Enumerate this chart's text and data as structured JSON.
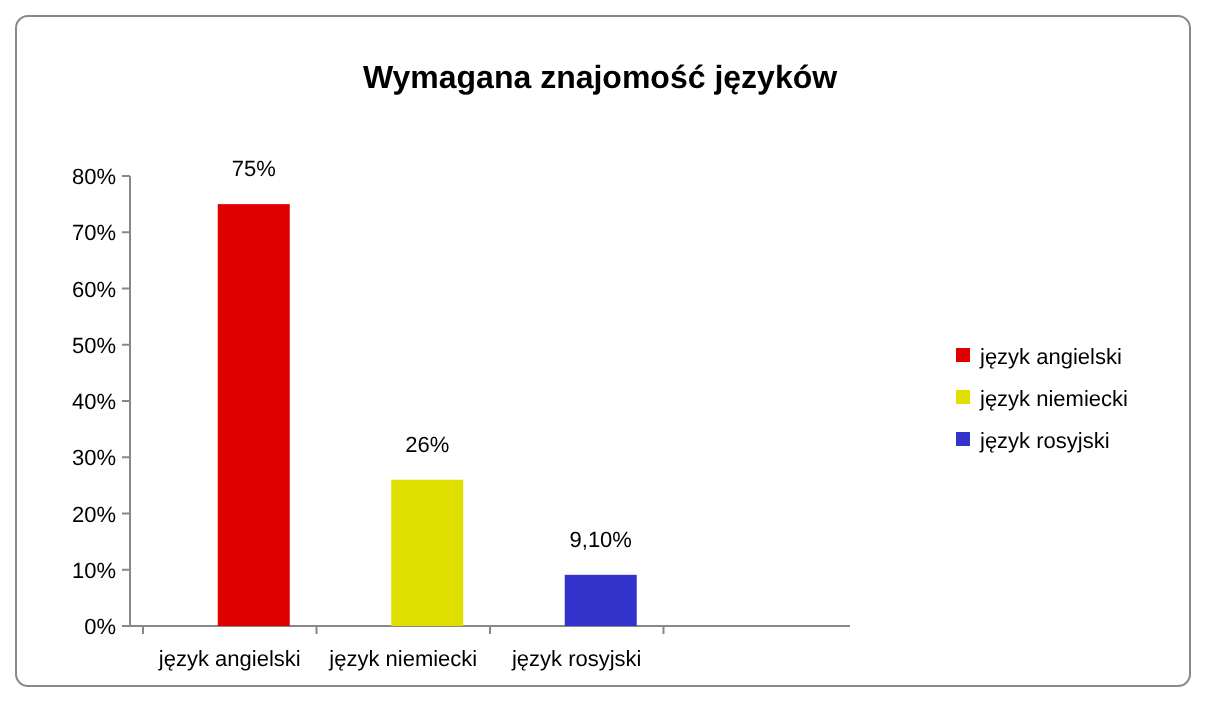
{
  "chart_data": {
    "type": "bar",
    "title": "Wymagana znajomość języków",
    "categories": [
      "język angielski",
      "język niemiecki",
      "język rosyjski",
      null
    ],
    "series": [
      {
        "name": "język angielski",
        "color": "#e00000",
        "values": [
          75,
          null,
          null,
          null
        ]
      },
      {
        "name": "język niemiecki",
        "color": "#e0e000",
        "values": [
          null,
          26,
          null,
          null
        ]
      },
      {
        "name": "język rosyjski",
        "color": "#3333cc",
        "values": [
          null,
          null,
          9.1,
          null
        ]
      }
    ],
    "value_labels": [
      "75%",
      "26%",
      "9,10%",
      null
    ],
    "ylim": [
      0,
      80
    ],
    "yticks": [
      {
        "value": 0,
        "label": "0%"
      },
      {
        "value": 10,
        "label": "10%"
      },
      {
        "value": 20,
        "label": "20%"
      },
      {
        "value": 30,
        "label": "30%"
      },
      {
        "value": 40,
        "label": "40%"
      },
      {
        "value": 50,
        "label": "50%"
      },
      {
        "value": 60,
        "label": "60%"
      },
      {
        "value": 70,
        "label": "70%"
      },
      {
        "value": 80,
        "label": "80%"
      }
    ],
    "grid": false,
    "legend": "right"
  }
}
